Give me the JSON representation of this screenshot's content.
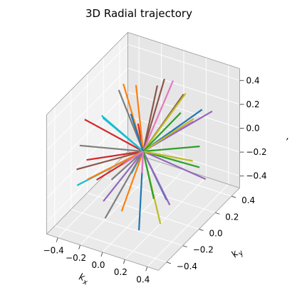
{
  "chart_data": {
    "type": "line",
    "projection": "3d",
    "title": "3D Radial trajectory",
    "xlabel": "k_x",
    "ylabel": "k_y",
    "zlabel": ",",
    "xlim": [
      -0.5,
      0.5
    ],
    "ylim": [
      -0.5,
      0.5
    ],
    "zlim": [
      -0.5,
      0.5
    ],
    "x_ticks": [
      "−0.4",
      "−0.2",
      "0.0",
      "0.2",
      "0.4"
    ],
    "y_ticks": [
      "−0.4",
      "−0.2",
      "0.0",
      "0.2",
      "0.4"
    ],
    "z_ticks": [
      "−0.4",
      "−0.2",
      "0.0",
      "0.2",
      "0.4"
    ],
    "grid": true,
    "colors": [
      "#1f77b4",
      "#ff7f0e",
      "#2ca02c",
      "#d62728",
      "#9467bd",
      "#8c564b",
      "#e377c2",
      "#7f7f7f",
      "#bcbd22",
      "#17becf"
    ],
    "origin": [
      0,
      0,
      0
    ],
    "spokes": [
      [
        0.05,
        -0.22,
        0.48
      ],
      [
        -0.25,
        0.1,
        0.42
      ],
      [
        0.3,
        0.05,
        0.38
      ],
      [
        -0.45,
        -0.1,
        0.2
      ],
      [
        0.4,
        0.3,
        0.25
      ],
      [
        -0.1,
        0.4,
        0.3
      ],
      [
        0.15,
        -0.45,
        0.25
      ],
      [
        -0.35,
        -0.3,
        0.15
      ],
      [
        0.48,
        -0.05,
        0.1
      ],
      [
        -0.48,
        0.15,
        0.05
      ],
      [
        0.2,
        0.45,
        0.1
      ],
      [
        -0.15,
        -0.48,
        0.05
      ],
      [
        0.35,
        -0.35,
        -0.05
      ],
      [
        -0.3,
        0.35,
        -0.1
      ],
      [
        0.45,
        0.15,
        -0.2
      ],
      [
        -0.45,
        -0.2,
        -0.15
      ],
      [
        0.1,
        0.48,
        -0.05
      ],
      [
        -0.05,
        -0.4,
        -0.3
      ],
      [
        0.3,
        -0.2,
        -0.38
      ],
      [
        -0.25,
        0.2,
        -0.4
      ],
      [
        0.1,
        0.15,
        -0.48
      ],
      [
        -0.12,
        -0.1,
        -0.47
      ],
      [
        0.25,
        0.35,
        -0.3
      ],
      [
        -0.38,
        -0.05,
        -0.32
      ],
      [
        0.42,
        -0.25,
        -0.15
      ],
      [
        -0.2,
        0.45,
        0.18
      ],
      [
        0.05,
        0.3,
        0.4
      ],
      [
        -0.4,
        0.25,
        0.22
      ],
      [
        0.38,
        0.1,
        0.32
      ],
      [
        -0.3,
        -0.4,
        -0.1
      ],
      [
        0.18,
        -0.3,
        -0.4
      ],
      [
        -0.1,
        0.05,
        0.49
      ],
      [
        0.47,
        0.05,
        0.15
      ],
      [
        -0.47,
        -0.05,
        -0.18
      ],
      [
        0.0,
        -0.49,
        -0.08
      ],
      [
        0.02,
        0.47,
        0.16
      ],
      [
        0.28,
        -0.4,
        0.18
      ],
      [
        -0.32,
        0.05,
        -0.37
      ],
      [
        0.22,
        0.22,
        0.4
      ],
      [
        -0.18,
        -0.25,
        0.4
      ]
    ]
  }
}
